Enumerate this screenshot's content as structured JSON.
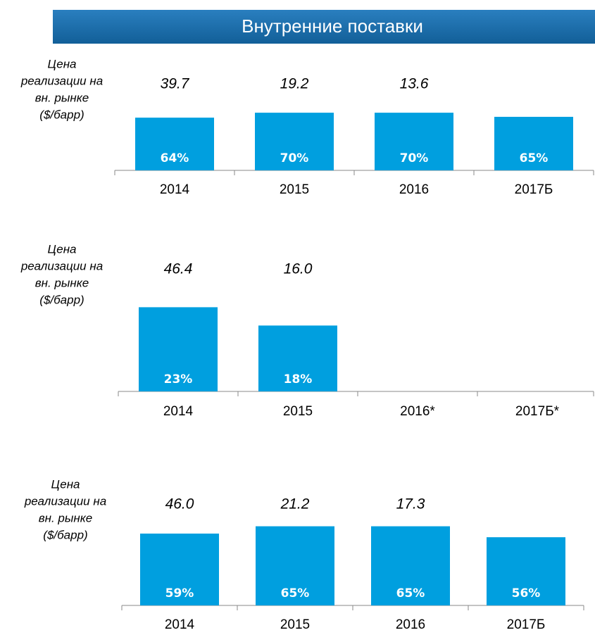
{
  "header": {
    "title": "Внутренние поставки"
  },
  "chart_data": [
    {
      "type": "bar",
      "color": "#009fdf",
      "price_axis_label": [
        "Цена",
        "реализации на",
        "вн. рынке",
        "($/барр)"
      ],
      "categories": [
        "2014",
        "2015",
        "2016",
        "2017Б"
      ],
      "values": [
        64,
        70,
        70,
        65
      ],
      "value_labels": [
        "64%",
        "70%",
        "70%",
        "65%"
      ],
      "prices": [
        39.7,
        19.2,
        13.6,
        null
      ],
      "price_labels": [
        "39.7",
        "19.2",
        "13.6",
        null
      ]
    },
    {
      "type": "bar",
      "color": "#009fdf",
      "price_axis_label": [
        "Цена",
        "реализации на",
        "вн. рынке",
        "($/барр)"
      ],
      "categories": [
        "2014",
        "2015",
        "2016*",
        "2017Б*"
      ],
      "values": [
        23,
        18,
        null,
        null
      ],
      "value_labels": [
        "23%",
        "18%",
        null,
        null
      ],
      "prices": [
        46.4,
        16,
        null,
        null
      ],
      "price_labels": [
        "46.4",
        "16.0",
        null,
        null
      ]
    },
    {
      "type": "bar",
      "color": "#009fdf",
      "price_axis_label": [
        "Цена",
        "реализации на",
        "вн. рынке",
        "($/барр)"
      ],
      "categories": [
        "2014",
        "2015",
        "2016",
        "2017Б"
      ],
      "values": [
        59,
        65,
        65,
        56
      ],
      "value_labels": [
        "59%",
        "65%",
        "65%",
        "56%"
      ],
      "prices": [
        46.0,
        21.2,
        17.3,
        null
      ],
      "price_labels": [
        "46.0",
        "21.2",
        "17.3",
        null
      ]
    }
  ]
}
